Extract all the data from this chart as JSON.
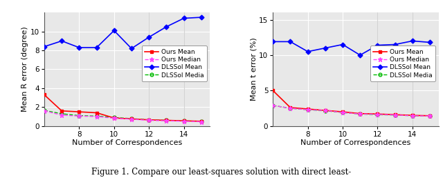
{
  "x": [
    6,
    7,
    8,
    9,
    10,
    11,
    12,
    13,
    14,
    15
  ],
  "left": {
    "ylabel": "Mean R error (degree)",
    "xlabel": "Number of Correspondences",
    "ylim": [
      0,
      12
    ],
    "yticks": [
      0,
      2,
      4,
      6,
      8,
      10
    ],
    "ours_mean": [
      3.3,
      1.6,
      1.5,
      1.4,
      0.85,
      0.75,
      0.65,
      0.6,
      0.55,
      0.5
    ],
    "ours_median": [
      1.6,
      1.15,
      1.05,
      1.0,
      0.82,
      0.72,
      0.6,
      0.55,
      0.5,
      0.45
    ],
    "dlssol_mean": [
      8.4,
      9.0,
      8.3,
      8.3,
      10.1,
      8.2,
      9.4,
      10.5,
      11.4,
      11.5
    ],
    "dlssol_media": [
      1.65,
      1.3,
      1.1,
      1.05,
      0.9,
      0.78,
      0.65,
      0.6,
      0.55,
      0.48
    ]
  },
  "right": {
    "ylabel": "Mean t error (%)",
    "xlabel": "Number of Correspondences",
    "ylim": [
      0,
      16
    ],
    "yticks": [
      0,
      5,
      10,
      15
    ],
    "ours_mean": [
      5.0,
      2.6,
      2.4,
      2.2,
      2.0,
      1.75,
      1.7,
      1.6,
      1.5,
      1.45
    ],
    "ours_median": [
      2.9,
      2.5,
      2.3,
      2.2,
      1.9,
      1.7,
      1.65,
      1.55,
      1.45,
      1.4
    ],
    "dlssol_mean": [
      11.9,
      11.9,
      10.5,
      11.0,
      11.5,
      10.0,
      11.4,
      11.5,
      12.0,
      11.8
    ],
    "dlssol_media": [
      2.9,
      2.5,
      2.3,
      2.15,
      1.9,
      1.7,
      1.6,
      1.55,
      1.45,
      1.4
    ]
  },
  "legend": {
    "ours_mean_label": "Ours Mean",
    "ours_median_label": "Ours Median",
    "dlssol_mean_label": "DLSSol Mean",
    "dlssol_media_label": "DLSSol Media"
  },
  "colors": {
    "ours_mean": "#ff0000",
    "ours_median": "#ff44ff",
    "dlssol_mean": "#0000ff",
    "dlssol_media": "#00bb00"
  },
  "caption": "Figure 1. Compare our least-squares solution with direct least-",
  "xticks": [
    8,
    10,
    12,
    14
  ],
  "vlines": [
    12,
    14
  ],
  "bg_color": "#e8e8e8",
  "fontsize": 8
}
